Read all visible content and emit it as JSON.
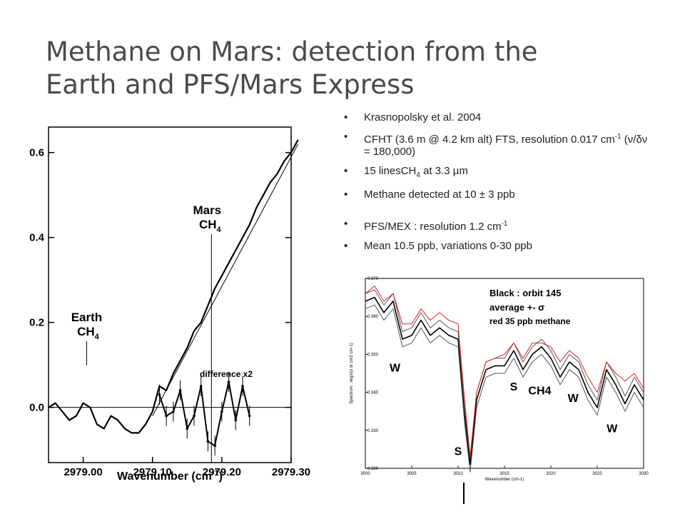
{
  "slide": {
    "title_line1": "Methane on Mars: detection from the",
    "title_line2": "Earth and PFS/Mars Express"
  },
  "bullets": {
    "b1": "Krasnopolsky et al. 2004",
    "b2a": "CFHT (3.6 m @ 4.2 km alt) FTS, resolution 0.017 cm",
    "b2sup": "-1",
    "b2b": " (ν/δν = 180,000)",
    "b3a": "15 linesCH",
    "b3sub": "4",
    "b3b": "  at 3.3 µm",
    "b4": "Methane detected at 10 ± 3 ppb",
    "b5a": "PFS/MEX : resolution 1.2 cm",
    "b5sup": "-1",
    "b6": "Mean 10.5 ppb, variations 0-30 ppb"
  },
  "chart_data": [
    {
      "type": "line",
      "xlabel": "Wavenumber (cm",
      "xlabel_sup": "-1",
      "xlabel_end": ")",
      "xlim": [
        2978.95,
        2979.3
      ],
      "ylim": [
        -0.13,
        0.66
      ],
      "xticks": [
        {
          "v": 2979.0,
          "label": "2979.00"
        },
        {
          "v": 2979.1,
          "label": "2979.10"
        },
        {
          "v": 2979.2,
          "label": "2979.20"
        },
        {
          "v": 2979.3,
          "label": "2979.30"
        }
      ],
      "yticks": [
        {
          "v": 0.0,
          "label": "0.0"
        },
        {
          "v": 0.2,
          "label": "0.2"
        },
        {
          "v": 0.4,
          "label": "0.4"
        },
        {
          "v": 0.6,
          "label": "0.6"
        }
      ],
      "annotations": {
        "mars": "Mars",
        "mars_ch": "CH",
        "mars_sub": "4",
        "earth": "Earth",
        "earth_ch": "CH",
        "earth_sub": "4",
        "difference": "difference x2",
        "mars_x": 2979.185,
        "earth_x": 2979.005
      },
      "series": [
        {
          "role": "spectrum",
          "x": [
            2978.95,
            2978.96,
            2978.97,
            2978.98,
            2978.99,
            2979.0,
            2979.01,
            2979.02,
            2979.03,
            2979.04,
            2979.05,
            2979.06,
            2979.07,
            2979.08,
            2979.09,
            2979.1,
            2979.11,
            2979.12,
            2979.13,
            2979.14,
            2979.15,
            2979.16,
            2979.17,
            2979.18,
            2979.19,
            2979.2,
            2979.21,
            2979.22,
            2979.23,
            2979.24,
            2979.25,
            2979.26,
            2979.27,
            2979.28,
            2979.29,
            2979.3,
            2979.31
          ],
          "y": [
            0.0,
            0.01,
            -0.01,
            -0.03,
            -0.02,
            0.01,
            0.0,
            -0.04,
            -0.05,
            -0.02,
            -0.03,
            -0.05,
            -0.06,
            -0.06,
            -0.04,
            -0.01,
            0.05,
            0.04,
            0.08,
            0.11,
            0.14,
            0.18,
            0.2,
            0.24,
            0.28,
            0.31,
            0.34,
            0.37,
            0.4,
            0.43,
            0.47,
            0.5,
            0.53,
            0.55,
            0.58,
            0.6,
            0.63
          ]
        },
        {
          "role": "fit",
          "x": [
            2979.1,
            2979.31
          ],
          "y": [
            -0.02,
            0.62
          ]
        },
        {
          "role": "difference x2",
          "x": [
            2979.11,
            2979.12,
            2979.13,
            2979.14,
            2979.15,
            2979.16,
            2979.17,
            2979.18,
            2979.19,
            2979.2,
            2979.21,
            2979.22,
            2979.23,
            2979.24
          ],
          "y": [
            0.03,
            -0.02,
            -0.01,
            0.04,
            -0.05,
            -0.02,
            0.05,
            -0.08,
            -0.09,
            -0.01,
            0.06,
            -0.03,
            0.05,
            -0.02
          ]
        }
      ]
    },
    {
      "type": "line",
      "xlabel": "Wavenumber (cm-1)",
      "ylabel": "Spectrum : ergs/(s sr cm2 cm-1)",
      "xlim": [
        3000,
        3030
      ],
      "ylim": [
        0.32,
        0.37
      ],
      "xticks": [
        3000,
        3005,
        3010,
        3015,
        3020,
        3025,
        3030
      ],
      "xtick_labels": [
        "3000",
        "3005",
        "3010",
        "3015",
        "3020",
        "3025",
        "3030"
      ],
      "yticks": [
        0.32,
        0.33,
        0.34,
        0.35,
        0.36,
        0.37
      ],
      "ytick_labels": [
        "0.320",
        "0.330",
        "0.340",
        "0.350",
        "0.360",
        "0.370"
      ],
      "legend": {
        "line1": "Black : orbit 145",
        "line2": "average +- σ",
        "line3": "red 35 ppb methane"
      },
      "labels": [
        {
          "text": "W",
          "x": 3003.2,
          "y": 0.3455
        },
        {
          "text": "S",
          "x": 3010.0,
          "y": 0.3235
        },
        {
          "text": "S",
          "x": 3016.0,
          "y": 0.3405
        },
        {
          "text": "CH4",
          "x": 3018.8,
          "y": 0.3395
        },
        {
          "text": "W",
          "x": 3022.4,
          "y": 0.3375
        },
        {
          "text": "W",
          "x": 3026.6,
          "y": 0.3295
        }
      ],
      "x": [
        3000,
        3001,
        3002,
        3003,
        3004,
        3005,
        3006,
        3007,
        3008,
        3009,
        3010,
        3010.7,
        3011.3,
        3012,
        3013,
        3014,
        3015,
        3016,
        3017,
        3018,
        3019,
        3020,
        3021,
        3022,
        3023,
        3024,
        3025,
        3026,
        3027,
        3028,
        3029,
        3030
      ],
      "series": [
        {
          "name": "average",
          "color": "#000000",
          "values": [
            0.364,
            0.365,
            0.361,
            0.364,
            0.354,
            0.355,
            0.359,
            0.355,
            0.357,
            0.355,
            0.354,
            0.334,
            0.321,
            0.338,
            0.346,
            0.347,
            0.347,
            0.351,
            0.346,
            0.35,
            0.352,
            0.349,
            0.344,
            0.348,
            0.346,
            0.34,
            0.336,
            0.346,
            0.342,
            0.337,
            0.342,
            0.338
          ]
        },
        {
          "name": "upper",
          "color": "#555555",
          "values": [
            0.366,
            0.367,
            0.363,
            0.366,
            0.356,
            0.357,
            0.361,
            0.357,
            0.359,
            0.357,
            0.356,
            0.336,
            0.323,
            0.34,
            0.348,
            0.349,
            0.349,
            0.353,
            0.348,
            0.352,
            0.354,
            0.351,
            0.346,
            0.35,
            0.348,
            0.342,
            0.338,
            0.348,
            0.344,
            0.339,
            0.344,
            0.34
          ]
        },
        {
          "name": "lower",
          "color": "#555555",
          "values": [
            0.362,
            0.363,
            0.359,
            0.362,
            0.352,
            0.353,
            0.357,
            0.353,
            0.355,
            0.353,
            0.352,
            0.332,
            0.319,
            0.336,
            0.344,
            0.345,
            0.345,
            0.349,
            0.344,
            0.348,
            0.35,
            0.347,
            0.342,
            0.346,
            0.344,
            0.338,
            0.334,
            0.344,
            0.34,
            0.335,
            0.34,
            0.336
          ]
        },
        {
          "name": "red 35 ppb methane",
          "color": "#e02020",
          "values": [
            0.366,
            0.368,
            0.364,
            0.366,
            0.358,
            0.358,
            0.362,
            0.359,
            0.361,
            0.359,
            0.358,
            0.338,
            0.323,
            0.34,
            0.348,
            0.349,
            0.35,
            0.353,
            0.349,
            0.353,
            0.353,
            0.352,
            0.348,
            0.351,
            0.349,
            0.344,
            0.34,
            0.348,
            0.345,
            0.343,
            0.345,
            0.341
          ]
        }
      ]
    }
  ]
}
